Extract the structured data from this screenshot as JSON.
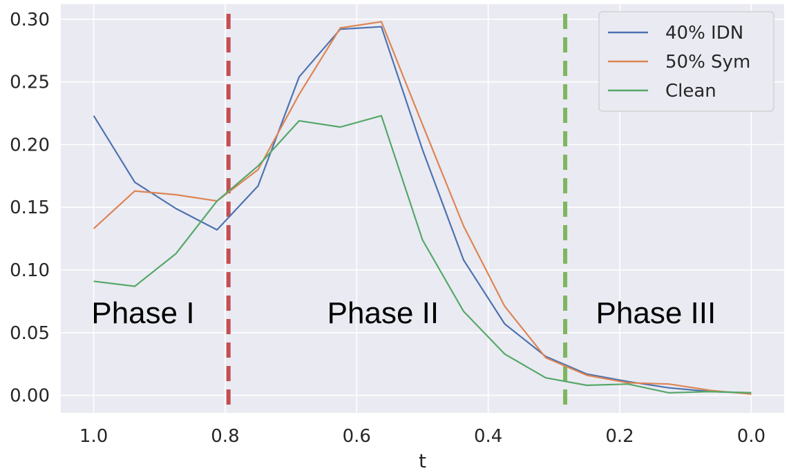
{
  "chart_data": {
    "type": "line",
    "title": "",
    "xlabel": "t",
    "ylabel": "",
    "xlim": [
      1.05,
      -0.05
    ],
    "ylim": [
      -0.014,
      0.312
    ],
    "x_ticks": [
      1.0,
      0.8,
      0.6,
      0.4,
      0.2,
      0.0
    ],
    "x_tick_labels": [
      "1.0",
      "0.8",
      "0.6",
      "0.4",
      "0.2",
      "0.0"
    ],
    "y_ticks": [
      0.0,
      0.05,
      0.1,
      0.15,
      0.2,
      0.25,
      0.3
    ],
    "y_tick_labels": [
      "0.00",
      "0.05",
      "0.10",
      "0.15",
      "0.20",
      "0.25",
      "0.30"
    ],
    "grid": true,
    "background": "#eaeaf2",
    "legend": "top-right",
    "x": [
      1.0,
      0.9375,
      0.875,
      0.8125,
      0.75,
      0.6875,
      0.625,
      0.5625,
      0.5,
      0.4375,
      0.375,
      0.3125,
      0.25,
      0.1875,
      0.125,
      0.0625,
      0.0
    ],
    "series": [
      {
        "name": "40% IDN",
        "color": "#4c72b0",
        "values": [
          0.223,
          0.17,
          0.149,
          0.132,
          0.167,
          0.254,
          0.292,
          0.294,
          0.196,
          0.108,
          0.057,
          0.031,
          0.017,
          0.011,
          0.006,
          0.003,
          0.002
        ]
      },
      {
        "name": "50% Sym",
        "color": "#dd8452",
        "values": [
          0.133,
          0.163,
          0.16,
          0.155,
          0.18,
          0.24,
          0.293,
          0.298,
          0.216,
          0.135,
          0.071,
          0.03,
          0.016,
          0.01,
          0.009,
          0.004,
          0.001
        ]
      },
      {
        "name": "Clean",
        "color": "#55a868",
        "values": [
          0.091,
          0.087,
          0.113,
          0.155,
          0.183,
          0.219,
          0.214,
          0.223,
          0.124,
          0.067,
          0.033,
          0.014,
          0.008,
          0.009,
          0.002,
          0.003,
          0.002
        ]
      }
    ],
    "vlines": [
      {
        "x": 0.795,
        "color": "#c44e52"
      },
      {
        "x": 0.283,
        "color": "#7fb65f"
      }
    ],
    "annotations": [
      {
        "text": "Phase I",
        "x": 0.925,
        "y": 0.066
      },
      {
        "text": "Phase II",
        "x": 0.56,
        "y": 0.066
      },
      {
        "text": "Phase III",
        "x": 0.145,
        "y": 0.066
      }
    ]
  }
}
